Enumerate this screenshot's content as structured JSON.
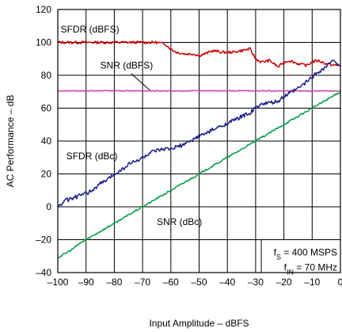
{
  "chart_data": {
    "type": "line",
    "xlabel": "Input Amplitude – dBFS",
    "ylabel": "AC Performance – dB",
    "xlim": [
      -100,
      0
    ],
    "ylim": [
      -40,
      120
    ],
    "grid": true,
    "x_ticks": [
      -100,
      -90,
      -80,
      -70,
      -60,
      -50,
      -40,
      -30,
      -20,
      -10,
      0
    ],
    "y_ticks": [
      -40,
      -20,
      0,
      20,
      40,
      60,
      80,
      100,
      120
    ],
    "x_tick_labels": [
      "–100",
      "–90",
      "–80",
      "–70",
      "–60",
      "–50",
      "–40",
      "–30",
      "–20",
      "–10",
      "0"
    ],
    "y_tick_labels": [
      "–40",
      "–20",
      "0",
      "20",
      "40",
      "60",
      "80",
      "100",
      "120"
    ],
    "series": [
      {
        "name": "SFDR (dBFS)",
        "color": "#cc0000",
        "x": [
          -100,
          -95,
          -90,
          -85,
          -80,
          -75,
          -70,
          -65,
          -62,
          -60,
          -58,
          -55,
          -52,
          -50,
          -48,
          -45,
          -42,
          -40,
          -38,
          -35,
          -32,
          -30,
          -28,
          -25,
          -22,
          -20,
          -18,
          -15,
          -12,
          -10,
          -8,
          -5,
          -2,
          0
        ],
        "y": [
          100,
          100,
          100,
          100,
          100,
          100,
          100,
          100,
          99,
          96,
          94,
          93,
          93,
          92,
          93,
          95,
          94,
          94,
          94,
          95,
          96,
          90,
          88,
          89,
          85,
          88,
          89,
          87,
          86,
          88,
          89,
          87,
          86,
          86
        ]
      },
      {
        "name": "SNR (dBFS)",
        "color": "#cc44aa",
        "x": [
          -100,
          -80,
          -60,
          -40,
          -20,
          0
        ],
        "y": [
          70.5,
          70.6,
          70.5,
          70.6,
          70.5,
          70.4
        ]
      },
      {
        "name": "SFDR (dBc)",
        "color": "#1a1a8c",
        "x": [
          -100,
          -97,
          -95,
          -92,
          -90,
          -87,
          -85,
          -82,
          -80,
          -77,
          -75,
          -72,
          -70,
          -67,
          -65,
          -62,
          -60,
          -57,
          -55,
          -52,
          -50,
          -47,
          -45,
          -42,
          -40,
          -37,
          -35,
          -32,
          -30,
          -27,
          -25,
          -22,
          -20,
          -17,
          -15,
          -12,
          -10,
          -8,
          -6,
          -4,
          -2,
          0
        ],
        "y": [
          0,
          4,
          5,
          7,
          8,
          11,
          14,
          17,
          20,
          23,
          26,
          28,
          30,
          33,
          34,
          35,
          35,
          37,
          38,
          41,
          43,
          45,
          47,
          49,
          51,
          53,
          55,
          57,
          60,
          63,
          63,
          64,
          67,
          70,
          72,
          76,
          79,
          82,
          84,
          87,
          89,
          86
        ]
      },
      {
        "name": "SNR (dBc)",
        "color": "#009944",
        "x": [
          -100,
          -98,
          -95,
          -92,
          -90,
          -85,
          -80,
          -70,
          -60,
          -50,
          -40,
          -30,
          -20,
          -10,
          0
        ],
        "y": [
          -31,
          -29,
          -26,
          -22,
          -20,
          -15,
          -10,
          0,
          10,
          20,
          30,
          40,
          50,
          60,
          70
        ]
      }
    ],
    "annotations": [
      {
        "text": "SFDR (dBFS)",
        "at_x": -99,
        "at_y": 106
      },
      {
        "text": "SNR (dBFS)",
        "at_x": -85,
        "at_y": 84
      },
      {
        "text": "SFDR (dBc)",
        "at_x": -97,
        "at_y": 29
      },
      {
        "text": "SNR (dBc)",
        "at_x": -65,
        "at_y": -11
      }
    ],
    "conditions": [
      {
        "main": "f",
        "sub": "S",
        "rest": " = 400 MSPS"
      },
      {
        "main": "f",
        "sub": "IN",
        "rest": " = 70 MHz"
      }
    ]
  }
}
